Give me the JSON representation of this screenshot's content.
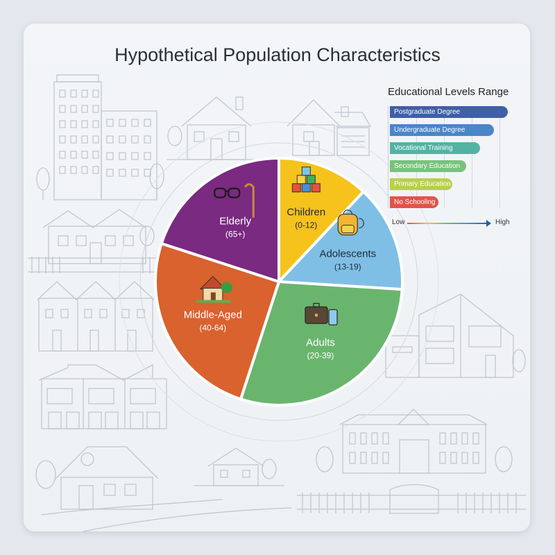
{
  "title": "Hypothetical Population Characteristics",
  "chart_data": [
    {
      "type": "pie",
      "title": "Hypothetical Population Characteristics",
      "slices": [
        {
          "label": "Children",
          "range": "(0-12)",
          "value": 12,
          "color": "#f6c21c",
          "icon": "toy-blocks-icon"
        },
        {
          "label": "Adolescents",
          "range": "(13-19)",
          "value": 14,
          "color": "#7fbfe6",
          "icon": "backpack-icon"
        },
        {
          "label": "Adults",
          "range": "(20-39)",
          "value": 29,
          "color": "#6ab56e",
          "icon": "briefcase-phone-icon"
        },
        {
          "label": "Middle-Aged",
          "range": "(40-64)",
          "value": 25,
          "color": "#d9622e",
          "icon": "house-icon"
        },
        {
          "label": "Elderly",
          "range": "(65+)",
          "value": 20,
          "color": "#7a2a80",
          "icon": "glasses-cane-icon"
        }
      ]
    },
    {
      "type": "bar",
      "title": "Educational Levels Range",
      "orientation": "horizontal",
      "categories": [
        "Postgraduate Degree",
        "Undergraduate Degree",
        "Vocational Training",
        "Secondary Education",
        "Primary Education",
        "No Schooling"
      ],
      "values": [
        6,
        5,
        4,
        3,
        2,
        1
      ],
      "colors": [
        "#3f5fa6",
        "#4a86c8",
        "#52b3a4",
        "#78c27a",
        "#b8cf4e",
        "#e0544a"
      ],
      "xlabel_low": "Low",
      "xlabel_high": "High"
    }
  ]
}
